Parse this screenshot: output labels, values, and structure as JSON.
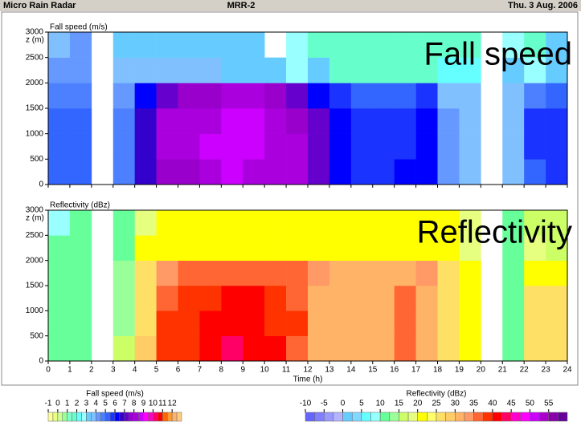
{
  "header": {
    "left": "Micro Rain Radar",
    "center": "MRR-2",
    "right": "Thu.  3 Aug. 2006"
  },
  "chart_data": [
    {
      "type": "heatmap",
      "title": "Fall speed (m/s)",
      "overlay_title": "Fall speed",
      "y_label": "z (m)",
      "xbins": [
        0,
        1,
        2,
        3,
        4,
        5,
        6,
        7,
        8,
        9,
        10,
        11,
        12,
        13,
        14,
        15,
        16,
        17,
        18,
        19,
        20,
        21,
        22,
        23,
        24
      ],
      "ybins": [
        0,
        500,
        1000,
        1500,
        2000,
        2500,
        3000
      ],
      "values": [
        [
          5,
          5,
          null,
          4.5,
          6.5,
          7.5,
          7.5,
          8,
          8.5,
          8,
          8,
          8,
          7,
          6,
          5.5,
          5.5,
          6,
          6,
          4,
          3.5,
          null,
          3.5,
          5,
          5.5
        ],
        [
          5,
          5,
          null,
          4.5,
          6.5,
          8,
          8,
          8.5,
          8.5,
          8.5,
          8,
          8,
          7,
          6,
          5.5,
          5.5,
          5.5,
          6,
          4,
          3.5,
          null,
          3.5,
          5.5,
          5.5
        ],
        [
          5,
          5,
          null,
          4.5,
          6.5,
          8,
          8,
          8,
          8.5,
          8.5,
          8,
          7.5,
          7,
          6,
          5.5,
          5.5,
          5.5,
          6,
          4,
          3.5,
          null,
          3.5,
          5.5,
          5.5
        ],
        [
          4.5,
          4.5,
          null,
          4,
          6,
          7,
          7.5,
          7.5,
          8,
          8,
          7.5,
          7,
          6,
          5.5,
          5,
          5,
          5,
          5.5,
          3.5,
          3.5,
          null,
          3.5,
          4.5,
          5
        ],
        [
          4,
          4,
          null,
          3.5,
          3.5,
          3.5,
          3.5,
          3.5,
          3,
          3,
          3,
          2.5,
          3,
          1.5,
          1.5,
          1.5,
          1.5,
          1.5,
          2,
          2,
          null,
          3,
          2.5,
          3
        ],
        [
          3.5,
          4,
          null,
          3,
          3,
          3,
          3,
          3,
          3,
          3,
          null,
          2.5,
          1.5,
          1.5,
          1.5,
          1.5,
          1.5,
          1.5,
          1.5,
          1.5,
          null,
          2.5,
          1.5,
          3
        ]
      ],
      "xlim": [
        0,
        24
      ],
      "ylim": [
        0,
        3000
      ],
      "yticks": [
        0,
        500,
        1000,
        1500,
        2000,
        2500,
        3000
      ],
      "colorbar": {
        "label": "Fall speed (m/s)",
        "lim": [
          -1,
          13
        ],
        "ticks": [
          -1,
          0,
          1,
          2,
          3,
          4,
          5,
          6,
          7,
          8,
          9,
          10,
          11,
          12
        ],
        "colors": [
          "#ffff99",
          "#e8ff80",
          "#ccff99",
          "#99ff99",
          "#80ffcc",
          "#66ffcc",
          "#66ffff",
          "#99ffff",
          "#66ccff",
          "#80c0ff",
          "#6699ff",
          "#4d80ff",
          "#3366ff",
          "#1a33ff",
          "#0000ff",
          "#3300cc",
          "#6600cc",
          "#9900cc",
          "#aa00dd",
          "#cc00ff",
          "#ff00ff",
          "#ff00cc",
          "#ff0066",
          "#ff0000",
          "#ff6600",
          "#ff9933",
          "#ffb366",
          "#ffcc80"
        ]
      }
    },
    {
      "type": "heatmap",
      "title": "Reflectivity (dBz)",
      "overlay_title": "Reflectivity",
      "y_label": "z (m)",
      "x_label": "Time (h)",
      "xbins": [
        0,
        1,
        2,
        3,
        4,
        5,
        6,
        7,
        8,
        9,
        10,
        11,
        12,
        13,
        14,
        15,
        16,
        17,
        18,
        19,
        20,
        21,
        22,
        23,
        24
      ],
      "ybins": [
        0,
        500,
        1000,
        1500,
        2000,
        2500,
        3000
      ],
      "values": [
        [
          12,
          12,
          null,
          15,
          28,
          38,
          38,
          40,
          43,
          42,
          40,
          37,
          32,
          30,
          30,
          30,
          37,
          30,
          27,
          22,
          null,
          10,
          27,
          25
        ],
        [
          12,
          12,
          null,
          14,
          27,
          38,
          38,
          40,
          42,
          42,
          38,
          38,
          32,
          30,
          30,
          30,
          37,
          30,
          27,
          22,
          null,
          10,
          25,
          25
        ],
        [
          12,
          12,
          null,
          14,
          27,
          37,
          38,
          38,
          40,
          40,
          38,
          37,
          32,
          30,
          30,
          30,
          37,
          30,
          27,
          22,
          null,
          10,
          25,
          25
        ],
        [
          12,
          12,
          null,
          14,
          25,
          33,
          36,
          36,
          37,
          37,
          36,
          36,
          33,
          30,
          30,
          30,
          32,
          33,
          25,
          20,
          null,
          10,
          22,
          20
        ],
        [
          10,
          10,
          null,
          12,
          20,
          22,
          22,
          22,
          22,
          22,
          22,
          22,
          22,
          22,
          22,
          22,
          22,
          22,
          22,
          18,
          null,
          10,
          18,
          17
        ],
        [
          8,
          10,
          null,
          12,
          18,
          20,
          20,
          20,
          20,
          20,
          20,
          20,
          20,
          20,
          20,
          20,
          20,
          20,
          20,
          18,
          null,
          10,
          15,
          15
        ]
      ],
      "xlim": [
        0,
        24
      ],
      "ylim": [
        0,
        3000
      ],
      "yticks": [
        0,
        500,
        1000,
        1500,
        2000,
        2500,
        3000
      ],
      "xticks": [
        0,
        1,
        2,
        3,
        4,
        5,
        6,
        7,
        8,
        9,
        10,
        11,
        12,
        13,
        14,
        15,
        16,
        17,
        18,
        19,
        20,
        21,
        22,
        23,
        24
      ],
      "colorbar": {
        "label": "Reflectivity (dBz)",
        "lim": [
          -10,
          60
        ],
        "ticks": [
          -10,
          -5,
          0,
          5,
          10,
          15,
          20,
          25,
          30,
          35,
          40,
          45,
          50,
          55
        ],
        "colors": [
          "#6666ff",
          "#7f7fff",
          "#9999ff",
          "#b3b3ff",
          "#66ccff",
          "#80d8ff",
          "#66ffff",
          "#99ffff",
          "#66ff99",
          "#99ff99",
          "#ccff66",
          "#e6ff80",
          "#ffff00",
          "#ffff66",
          "#ffe066",
          "#ffcc66",
          "#ffb366",
          "#ff9966",
          "#ff6633",
          "#ff3300",
          "#ff0000",
          "#ff0066",
          "#ff00cc",
          "#ff00ff",
          "#cc00ff",
          "#aa00cc",
          "#8800aa",
          "#660099"
        ]
      }
    }
  ]
}
